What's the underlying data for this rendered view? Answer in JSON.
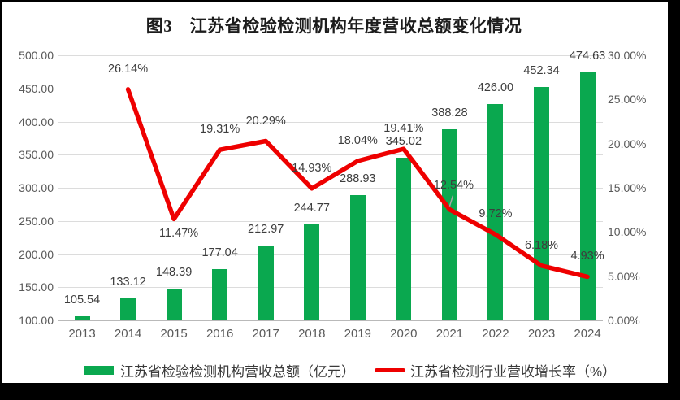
{
  "title": "图3　江苏省检验检测机构年度营收总额变化情况",
  "legend": {
    "bar_label": "江苏省检验检测机构营收总额（亿元）",
    "line_label": "江苏省检测行业营收增长率（%）"
  },
  "colors": {
    "bar": "#0AA84F",
    "line": "#EE0000",
    "grid": "#DCDCDC",
    "axis_text": "#595959",
    "data_label_text": "#3D3D3D",
    "leader_line": "#A6A6A6",
    "frame": "#000000",
    "background": "#FFFFFF"
  },
  "left_axis": {
    "tick_values": [
      500,
      450,
      400,
      350,
      300,
      250,
      200,
      150,
      100
    ],
    "tick_labels": [
      "500.00",
      "450.00",
      "400.00",
      "350.00",
      "300.00",
      "250.00",
      "200.00",
      "150.00",
      "100.00"
    ]
  },
  "right_axis": {
    "tick_values": [
      30,
      25,
      20,
      15,
      10,
      5,
      0
    ],
    "tick_labels": [
      "30.00%",
      "25.00%",
      "20.00%",
      "15.00%",
      "10.00%",
      "5.00%",
      "0.00%"
    ]
  },
  "chart_data": {
    "type": "combo-bar-line",
    "title": "图3　江苏省检验检测机构年度营收总额变化情况",
    "categories": [
      "2013",
      "2014",
      "2015",
      "2016",
      "2017",
      "2018",
      "2019",
      "2020",
      "2021",
      "2022",
      "2023",
      "2024"
    ],
    "series": [
      {
        "name": "江苏省检验检测机构营收总额（亿元）",
        "type": "bar",
        "axis": "left",
        "values": [
          105.54,
          133.12,
          148.39,
          177.04,
          212.97,
          244.77,
          288.93,
          345.02,
          388.28,
          426.0,
          452.34,
          474.63
        ],
        "labels": [
          "105.54",
          "133.12",
          "148.39",
          "177.04",
          "212.97",
          "244.77",
          "288.93",
          "345.02",
          "388.28",
          "426.00",
          "452.34",
          "474.63"
        ]
      },
      {
        "name": "江苏省检测行业营收增长率（%）",
        "type": "line",
        "axis": "right",
        "values": [
          null,
          26.14,
          11.47,
          19.31,
          20.29,
          14.93,
          18.04,
          19.41,
          12.54,
          9.72,
          6.18,
          4.93
        ],
        "labels": [
          null,
          "26.14%",
          "11.47%",
          "19.31%",
          "20.29%",
          "14.93%",
          "18.04%",
          "19.41%",
          "12.54%",
          "9.72%",
          "6.18%",
          "4.93%"
        ]
      }
    ],
    "ylim_left": [
      100,
      500
    ],
    "ylim_right": [
      0,
      30
    ],
    "grid": true,
    "legend_position": "bottom"
  }
}
